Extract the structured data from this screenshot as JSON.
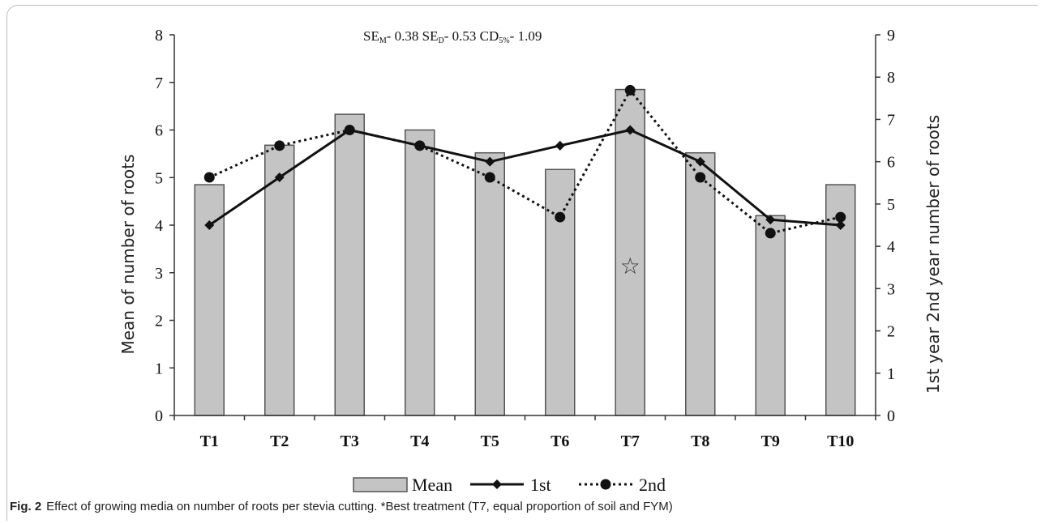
{
  "chart_data": {
    "type": "bar",
    "categories": [
      "T1",
      "T2",
      "T3",
      "T4",
      "T5",
      "T6",
      "T7",
      "T8",
      "T9",
      "T10"
    ],
    "series": [
      {
        "name": "Mean",
        "type": "bar",
        "axis": "left",
        "values": [
          4.85,
          5.68,
          6.33,
          6.0,
          5.52,
          5.17,
          6.85,
          5.52,
          4.2,
          4.85
        ]
      },
      {
        "name": "1st",
        "type": "line",
        "axis": "right",
        "values": [
          4.5,
          5.63,
          6.75,
          6.38,
          6.0,
          6.38,
          6.75,
          6.0,
          4.63,
          4.5
        ]
      },
      {
        "name": "2nd",
        "type": "line",
        "axis": "right",
        "values": [
          5.63,
          6.38,
          6.75,
          6.38,
          5.63,
          4.69,
          7.69,
          5.63,
          4.31,
          4.69
        ]
      }
    ],
    "ylabel": "Mean of number of roots",
    "y2label": "1st year 2nd year number of roots",
    "ylim": [
      0,
      8
    ],
    "y2lim": [
      0,
      9
    ],
    "yticks": [
      "0",
      "1",
      "2",
      "3",
      "4",
      "5",
      "6",
      "7",
      "8"
    ],
    "y2ticks": [
      "0",
      "1",
      "2",
      "3",
      "4",
      "5",
      "6",
      "7",
      "8",
      "9"
    ],
    "legend_position": "bottom",
    "annotation": {
      "symbol": "☆",
      "category": "T7",
      "value": 3.15
    },
    "stats": {
      "se_m": "0.38",
      "se_d": "0.53",
      "cd": "1.09"
    }
  },
  "caption": {
    "label": "Fig. 2",
    "text": "Effect of growing media on number of roots per stevia cutting. *Best treatment (T7, equal proportion of soil and FYM)"
  },
  "colors": {
    "bar_fill": "#c4c4c4",
    "bar_stroke": "#555555",
    "line": "#111111"
  }
}
